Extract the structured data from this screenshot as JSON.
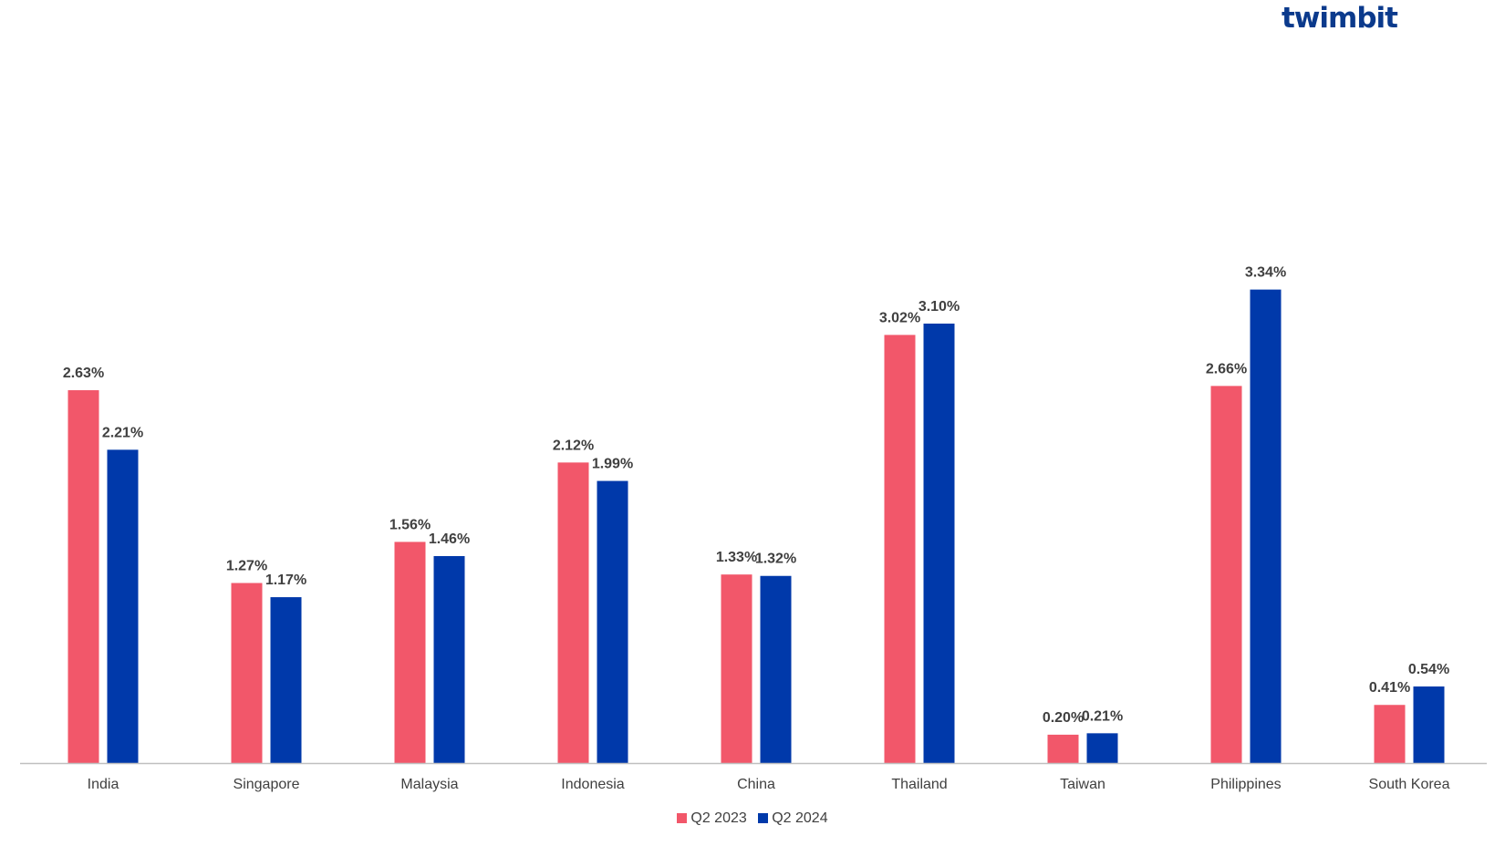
{
  "brand": {
    "logo_text": "twimbit"
  },
  "colors": {
    "q2_2023": "#f2576a",
    "q2_2024": "#0039aa",
    "axis": "#bfbfbf",
    "label": "#404040",
    "value_label": "#404040"
  },
  "chart_data": {
    "type": "bar",
    "title": "",
    "xlabel": "",
    "ylabel": "",
    "ylim": [
      0,
      3.5
    ],
    "grid": false,
    "legend_position": "bottom",
    "categories": [
      "India",
      "Singapore",
      "Malaysia",
      "Indonesia",
      "China",
      "Thailand",
      "Taiwan",
      "Philippines",
      "South Korea"
    ],
    "series": [
      {
        "name": "Q2 2023",
        "values": [
          2.63,
          1.27,
          1.56,
          2.12,
          1.33,
          3.02,
          0.2,
          2.66,
          0.41
        ],
        "labels": [
          "2.63%",
          "1.27%",
          "1.56%",
          "2.12%",
          "1.33%",
          "3.02%",
          "0.20%",
          "2.66%",
          "0.41%"
        ]
      },
      {
        "name": "Q2 2024",
        "values": [
          2.21,
          1.17,
          1.46,
          1.99,
          1.32,
          3.1,
          0.21,
          3.34,
          0.54
        ],
        "labels": [
          "2.21%",
          "1.17%",
          "1.46%",
          "1.99%",
          "1.32%",
          "3.10%",
          "0.21%",
          "3.34%",
          "0.54%"
        ]
      }
    ]
  }
}
